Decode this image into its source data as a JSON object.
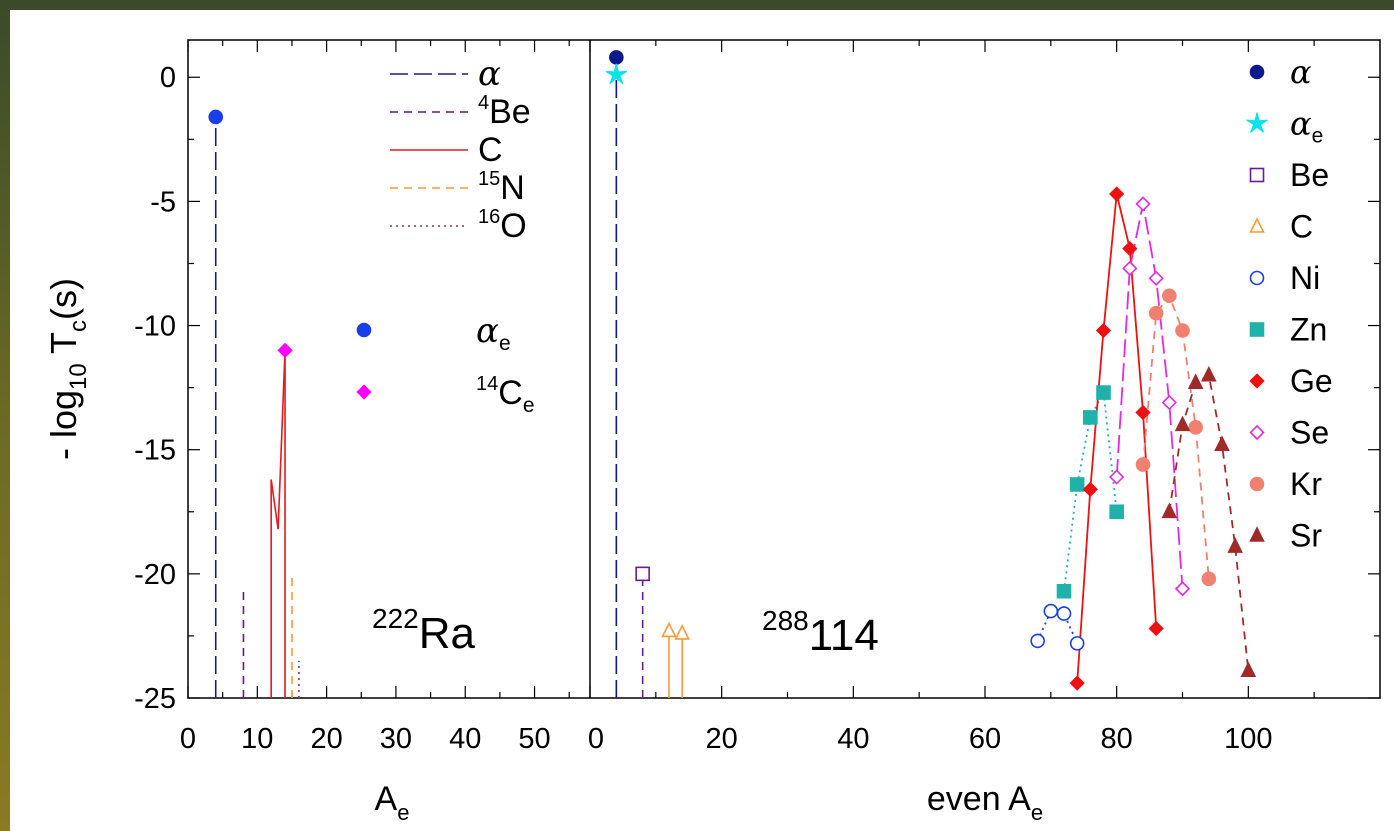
{
  "chart_data": [
    {
      "panel": "left",
      "type": "line",
      "xlabel": "A",
      "xlabel_sub": "e",
      "ylabel_parts": [
        "- log",
        "10",
        " T",
        "c",
        "(s)"
      ],
      "xlim": [
        0,
        58
      ],
      "ylim": [
        -25,
        1.5
      ],
      "xticks": [
        0,
        10,
        20,
        30,
        40,
        50
      ],
      "yticks": [
        0,
        -5,
        -10,
        -15,
        -20,
        -25
      ],
      "nucleus": {
        "mass": "222",
        "symbol": "Ra"
      },
      "legend": {
        "lines": [
          {
            "pre": "",
            "main": "α",
            "greek": true,
            "style": "long-dash",
            "color": "#1a1a8c"
          },
          {
            "pre": "4",
            "main": "Be",
            "greek": false,
            "style": "dash",
            "color": "#5a1a8c"
          },
          {
            "pre": "",
            "main": "C",
            "greek": false,
            "style": "solid",
            "color": "#e41a1c"
          },
          {
            "pre": "15",
            "main": "N",
            "greek": false,
            "style": "dash",
            "color": "#ff9933"
          },
          {
            "pre": "16",
            "main": "O",
            "greek": false,
            "style": "dot",
            "color": "#8b3a3a"
          }
        ],
        "points": [
          {
            "pre": "",
            "main": "α",
            "sub": "e",
            "greek": true,
            "marker": "circle",
            "color": "#1a3fe6"
          },
          {
            "pre": "14",
            "main": "C",
            "sub": "e",
            "greek": false,
            "marker": "diamond",
            "color": "#ff00ff"
          }
        ]
      },
      "series": [
        {
          "name": "α",
          "color": "#1a1a8c",
          "style": "long-dash",
          "segments": [
            [
              [
                4,
                -25
              ],
              [
                4,
                -1.6
              ]
            ]
          ]
        },
        {
          "name": "4Be",
          "color": "#5a1a8c",
          "style": "dash",
          "segments": [
            [
              [
                8,
                -25
              ],
              [
                8,
                -20.5
              ]
            ]
          ]
        },
        {
          "name": "C",
          "color": "#e41a1c",
          "style": "solid",
          "segments": [
            [
              [
                12,
                -25
              ],
              [
                12,
                -16.2
              ]
            ],
            [
              [
                12,
                -16.2
              ],
              [
                13,
                -18.2
              ]
            ],
            [
              [
                13,
                -18.2
              ],
              [
                14,
                -11
              ]
            ],
            [
              [
                14,
                -11
              ],
              [
                14,
                -25
              ]
            ]
          ]
        },
        {
          "name": "15N",
          "color": "#ff9933",
          "style": "dash",
          "segments": [
            [
              [
                15,
                -25
              ],
              [
                15,
                -20
              ]
            ]
          ]
        },
        {
          "name": "16O",
          "color": "#8b3a3a",
          "style": "dot",
          "segments": [
            [
              [
                16,
                -25
              ],
              [
                16,
                -23.5
              ]
            ]
          ]
        }
      ],
      "points": [
        {
          "name": "α",
          "marker": "circle",
          "color": "#1a3fe6",
          "x": 4,
          "y": -1.6
        },
        {
          "name": "14C",
          "marker": "diamond",
          "color": "#ff00ff",
          "x": 14,
          "y": -11
        }
      ]
    },
    {
      "panel": "right",
      "type": "scatter",
      "xlabel": "even A",
      "xlabel_sub": "e",
      "xlim": [
        0,
        120
      ],
      "ylim": [
        -25,
        1.5
      ],
      "xticks": [
        0,
        20,
        40,
        60,
        80,
        100
      ],
      "nucleus": {
        "mass": "288",
        "symbol": "114"
      },
      "legend": [
        {
          "name": "α",
          "sub": "",
          "greek": true,
          "marker": "circle",
          "color": "#0a1a8c"
        },
        {
          "name": "α",
          "sub": "e",
          "greek": true,
          "marker": "star",
          "color": "#00e5e5"
        },
        {
          "name": "Be",
          "sub": "",
          "greek": false,
          "marker": "square-open",
          "color": "#6a1a9a"
        },
        {
          "name": "C",
          "sub": "",
          "greek": false,
          "marker": "triangle-open",
          "color": "#ff9933"
        },
        {
          "name": "Ni",
          "sub": "",
          "greek": false,
          "marker": "circle-open",
          "color": "#1a3fe6"
        },
        {
          "name": "Zn",
          "sub": "",
          "greek": false,
          "marker": "square",
          "color": "#20b2aa"
        },
        {
          "name": "Ge",
          "sub": "",
          "greek": false,
          "marker": "diamond",
          "color": "#ee1111"
        },
        {
          "name": "Se",
          "sub": "",
          "greek": false,
          "marker": "diamond-open",
          "color": "#e628e6"
        },
        {
          "name": "Kr",
          "sub": "",
          "greek": false,
          "marker": "circle",
          "color": "#f08070"
        },
        {
          "name": "Sr",
          "sub": "",
          "greek": false,
          "marker": "triangle",
          "color": "#a02a2a"
        }
      ],
      "series": [
        {
          "name": "α",
          "color": "#0a1a8c",
          "marker": "circle",
          "line": "long-dash",
          "drop": true,
          "x": [
            4
          ],
          "y": [
            0.8
          ]
        },
        {
          "name": "αe",
          "color": "#00e5e5",
          "marker": "star",
          "line": "none",
          "drop": false,
          "x": [
            4
          ],
          "y": [
            0.1
          ]
        },
        {
          "name": "Be",
          "color": "#6a1a9a",
          "marker": "square-open",
          "line": "dash",
          "drop": true,
          "x": [
            8
          ],
          "y": [
            -20
          ]
        },
        {
          "name": "C",
          "color": "#ff9933",
          "marker": "triangle-open",
          "line": "solid",
          "drop": true,
          "x": [
            12,
            14
          ],
          "y": [
            -22.3,
            -22.4
          ]
        },
        {
          "name": "Ni",
          "color": "#1a3fe6",
          "marker": "circle-open",
          "line": "dot",
          "drop": false,
          "x": [
            68,
            70,
            72,
            74
          ],
          "y": [
            -22.7,
            -21.5,
            -21.6,
            -22.8
          ]
        },
        {
          "name": "Zn",
          "color": "#20b2aa",
          "marker": "square",
          "line": "dot",
          "drop": false,
          "x": [
            72,
            74,
            76,
            78,
            80
          ],
          "y": [
            -20.7,
            -16.4,
            -13.7,
            -12.7,
            -17.5
          ]
        },
        {
          "name": "Ge",
          "color": "#ee1111",
          "marker": "diamond",
          "line": "solid",
          "drop": false,
          "x": [
            74,
            76,
            78,
            80,
            82,
            84,
            86
          ],
          "y": [
            -24.4,
            -16.6,
            -10.2,
            -4.7,
            -6.9,
            -13.5,
            -22.2
          ]
        },
        {
          "name": "Se",
          "color": "#e628e6",
          "marker": "diamond-open",
          "line": "long-dash",
          "drop": false,
          "x": [
            80,
            82,
            84,
            86,
            88,
            90
          ],
          "y": [
            -16.1,
            -7.7,
            -5.1,
            -8.1,
            -13.1,
            -20.6
          ]
        },
        {
          "name": "Kr",
          "color": "#f08070",
          "marker": "circle",
          "line": "dash",
          "drop": false,
          "x": [
            84,
            86,
            88,
            90,
            92,
            94
          ],
          "y": [
            -15.6,
            -9.5,
            -8.8,
            -10.2,
            -14.1,
            -20.2
          ]
        },
        {
          "name": "Sr",
          "color": "#a02a2a",
          "marker": "triangle",
          "line": "dash",
          "drop": false,
          "x": [
            88,
            90,
            92,
            94,
            96,
            98,
            100
          ],
          "y": [
            -17.5,
            -14,
            -12.3,
            -12,
            -14.8,
            -18.9,
            -23.9
          ]
        }
      ]
    }
  ]
}
